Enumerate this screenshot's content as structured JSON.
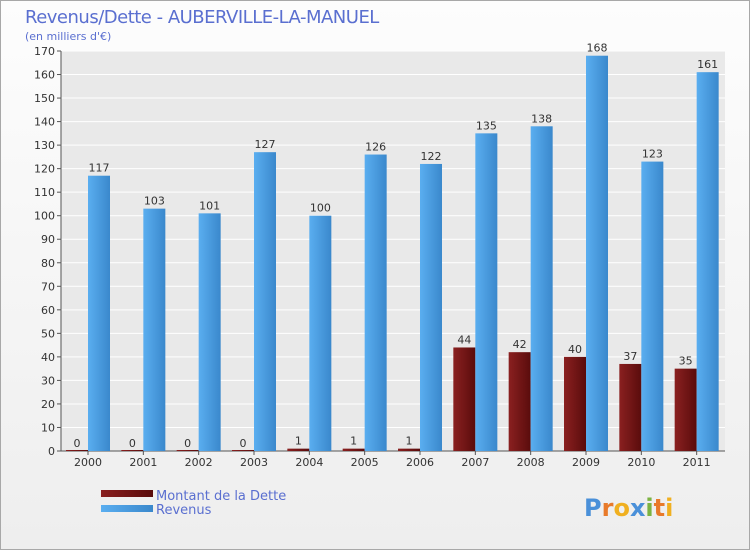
{
  "chart_data": {
    "type": "bar",
    "title": "Revenus/Dette - AUBERVILLE-LA-MANUEL",
    "subtitle": "(en milliers d'€)",
    "categories": [
      "2000",
      "2001",
      "2002",
      "2003",
      "2004",
      "2005",
      "2006",
      "2007",
      "2008",
      "2009",
      "2010",
      "2011"
    ],
    "series": [
      {
        "name": "Montant de la Dette",
        "color": "#6e1414",
        "values": [
          0,
          0,
          0,
          0,
          1,
          1,
          1,
          44,
          42,
          40,
          37,
          35
        ]
      },
      {
        "name": "Revenus",
        "color": "#4a9ee2",
        "values": [
          117,
          103,
          101,
          127,
          100,
          126,
          122,
          135,
          138,
          168,
          123,
          161
        ]
      }
    ],
    "ylim": [
      0,
      170
    ],
    "ytick_step": 10,
    "grid": true,
    "legend_position": "bottom-left"
  },
  "branding": {
    "logo_letters": [
      "P",
      "r",
      "o",
      "x",
      "i",
      "t",
      "i"
    ],
    "logo_colors": [
      "#4a90d9",
      "#e87a2a",
      "#f0b020",
      "#4a90d9",
      "#7cb342",
      "#e87a2a",
      "#f0b020"
    ]
  }
}
